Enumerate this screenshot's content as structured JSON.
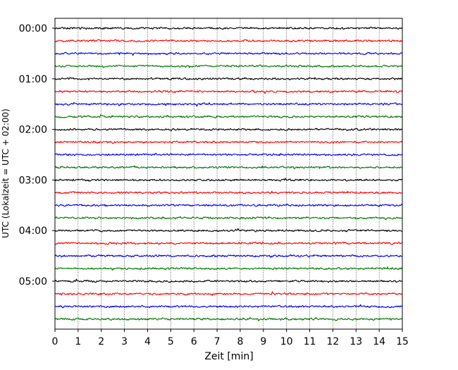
{
  "chart_data": {
    "type": "line",
    "subtype": "helicorder",
    "xlabel": "Zeit  [min]",
    "ylabel": "UTC (Lokalzeit = UTC + 02:00)",
    "xlim": [
      0,
      15
    ],
    "x_ticks": [
      0,
      1,
      2,
      3,
      4,
      5,
      6,
      7,
      8,
      9,
      10,
      11,
      12,
      13,
      14,
      15
    ],
    "y_ticks": [
      "00:00",
      "01:00",
      "02:00",
      "03:00",
      "04:00",
      "05:00"
    ],
    "trace_interval_min": 15,
    "trace_count": 24,
    "trace_colors": [
      "#000000",
      "#ff0000",
      "#0000ff",
      "#007700"
    ],
    "grid": {
      "x": true,
      "style": "dotted"
    },
    "series": [
      {
        "start": "00:00",
        "color": "#000000"
      },
      {
        "start": "00:15",
        "color": "#ff0000"
      },
      {
        "start": "00:30",
        "color": "#0000ff"
      },
      {
        "start": "00:45",
        "color": "#007700"
      },
      {
        "start": "01:00",
        "color": "#000000"
      },
      {
        "start": "01:15",
        "color": "#ff0000"
      },
      {
        "start": "01:30",
        "color": "#0000ff"
      },
      {
        "start": "01:45",
        "color": "#007700"
      },
      {
        "start": "02:00",
        "color": "#000000"
      },
      {
        "start": "02:15",
        "color": "#ff0000"
      },
      {
        "start": "02:30",
        "color": "#0000ff"
      },
      {
        "start": "02:45",
        "color": "#007700"
      },
      {
        "start": "03:00",
        "color": "#000000"
      },
      {
        "start": "03:15",
        "color": "#ff0000"
      },
      {
        "start": "03:30",
        "color": "#0000ff"
      },
      {
        "start": "03:45",
        "color": "#007700"
      },
      {
        "start": "04:00",
        "color": "#000000"
      },
      {
        "start": "04:15",
        "color": "#ff0000"
      },
      {
        "start": "04:30",
        "color": "#0000ff"
      },
      {
        "start": "04:45",
        "color": "#007700"
      },
      {
        "start": "05:00",
        "color": "#000000"
      },
      {
        "start": "05:15",
        "color": "#ff0000"
      },
      {
        "start": "05:30",
        "color": "#0000ff"
      },
      {
        "start": "05:45",
        "color": "#007700"
      }
    ]
  }
}
